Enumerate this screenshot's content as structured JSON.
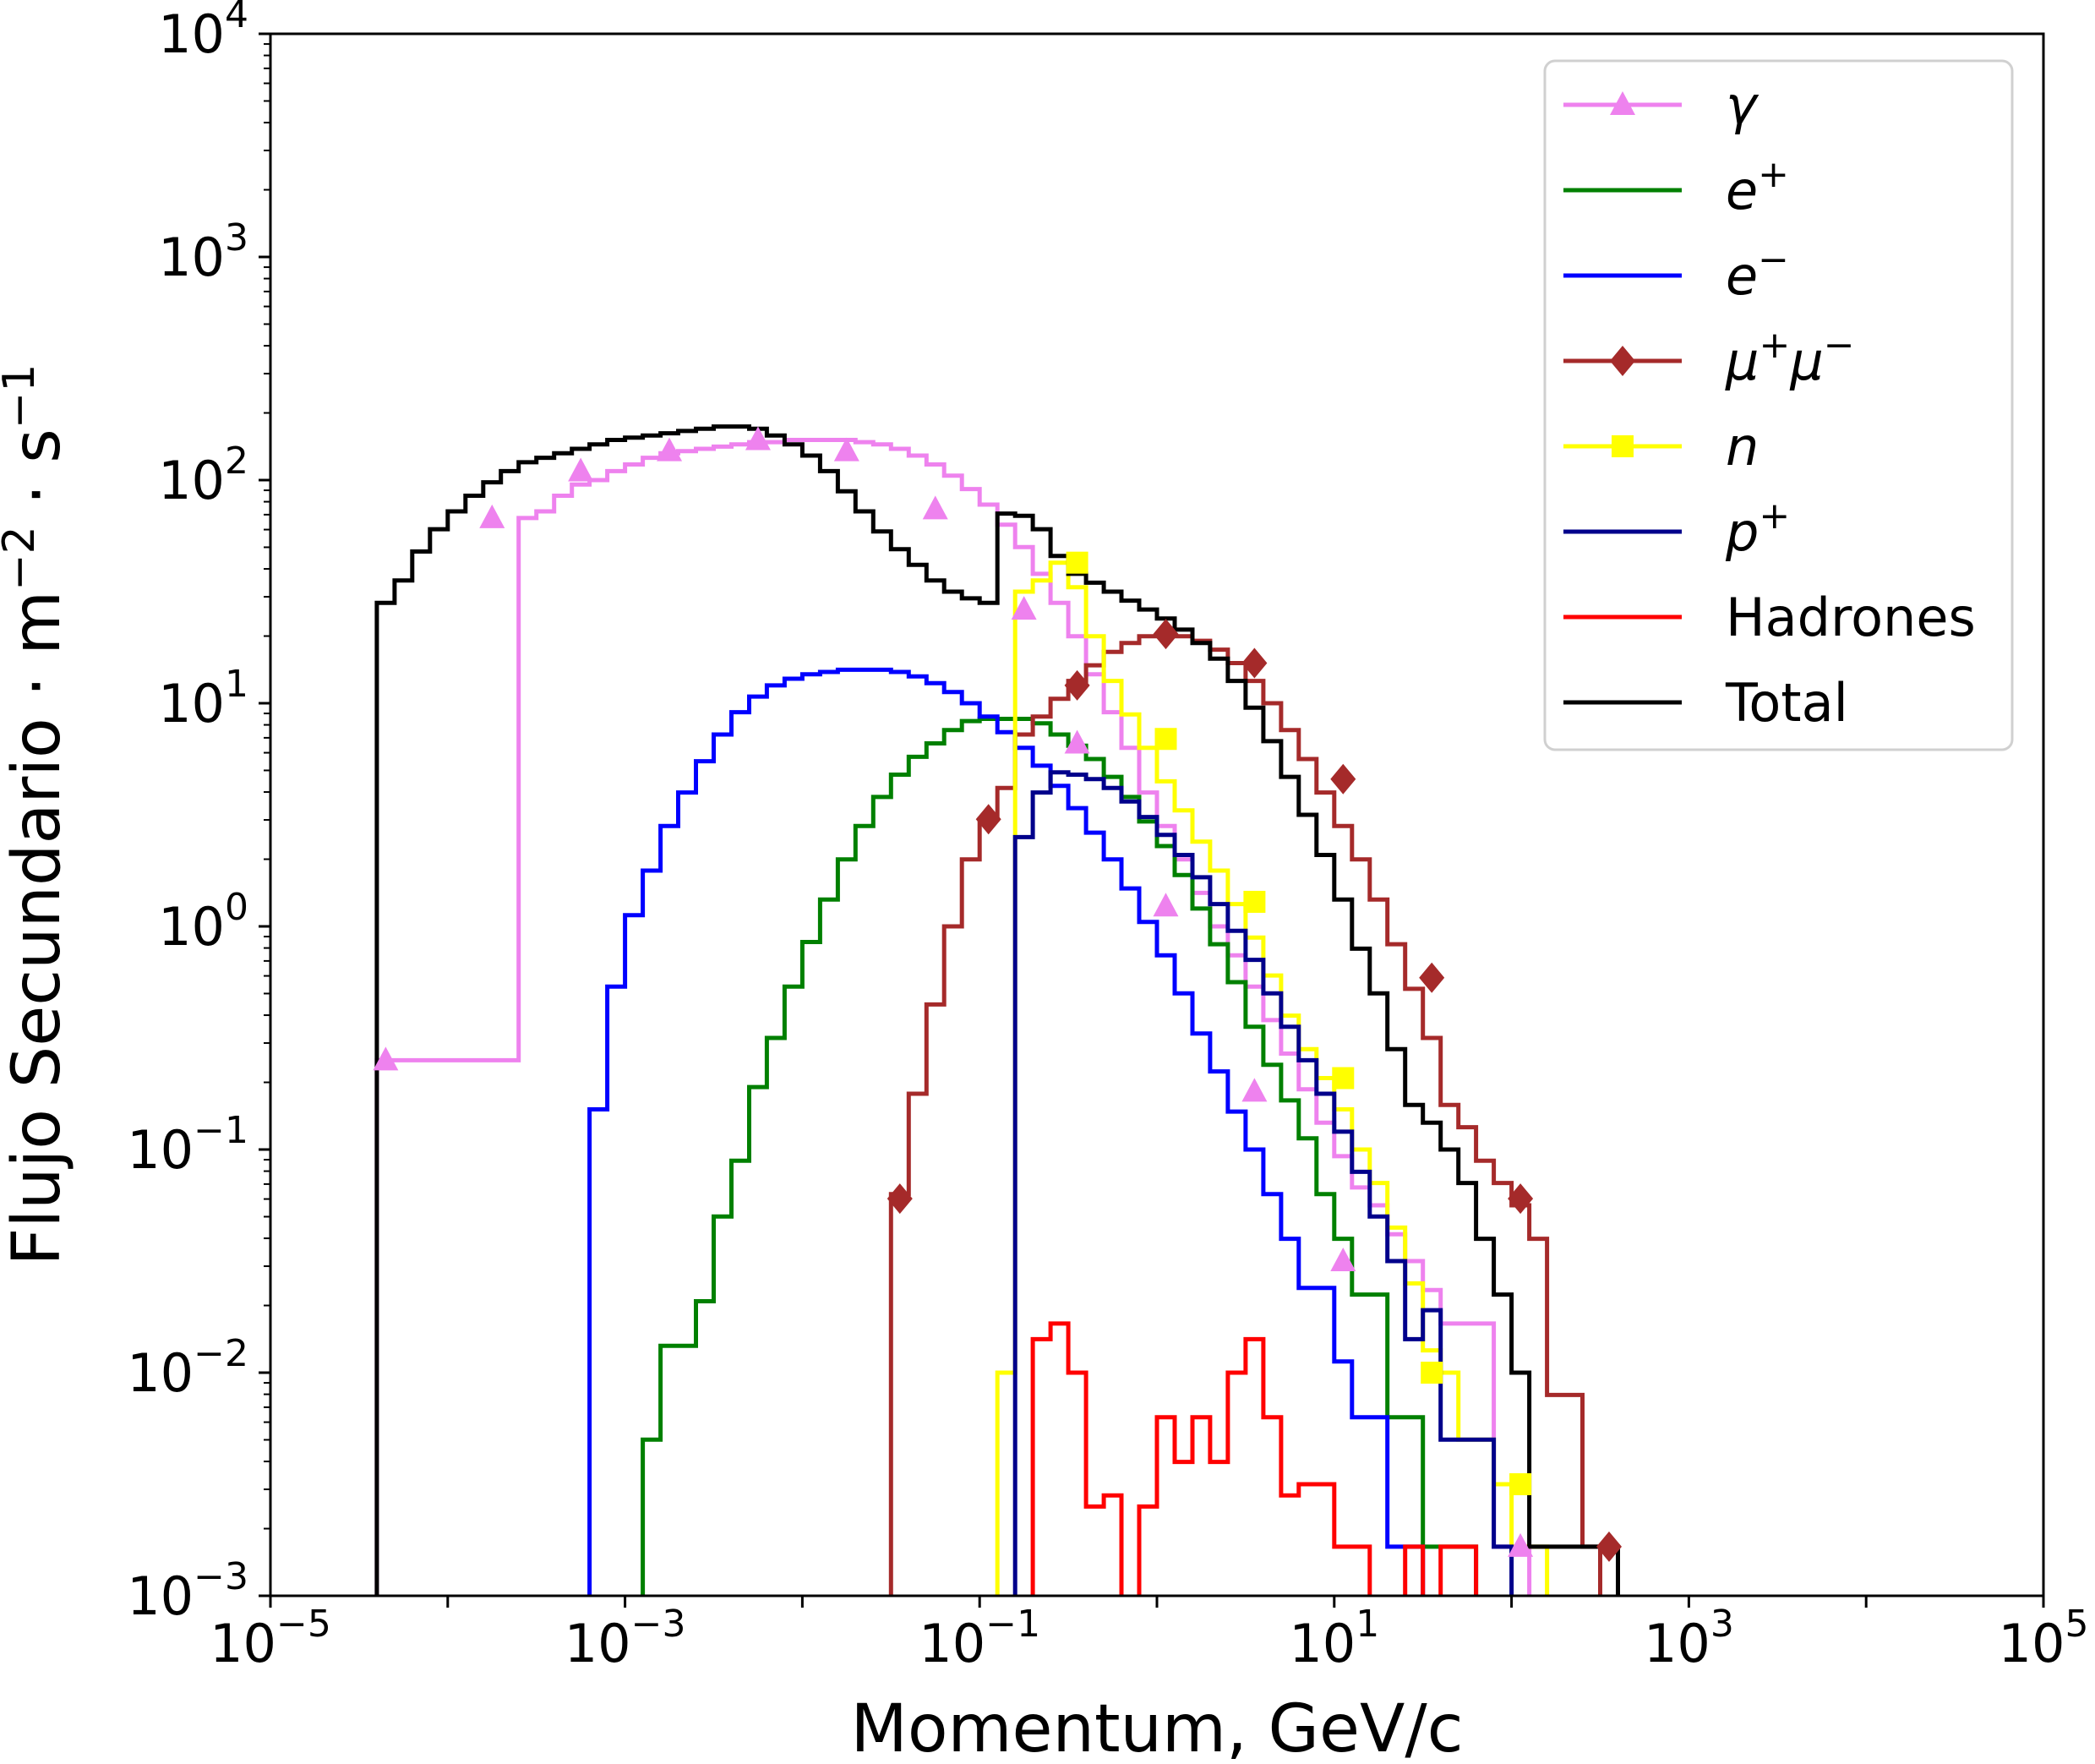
{
  "chart_data": {
    "type": "line",
    "subtype": "step-histogram",
    "title": "",
    "xlabel": "Momentum, GeV/c",
    "ylabel": "Flujo Secundario · m⁻² · s⁻¹",
    "ylabel_parts": {
      "base": "Flujo Secundario · m",
      "exp1": "−2",
      "mid": " · s",
      "exp2": "−1"
    },
    "xscale": "log",
    "yscale": "log",
    "xlim": [
      1e-05,
      100000.0
    ],
    "ylim": [
      0.001,
      10000.0
    ],
    "grid": false,
    "legend_position": "top-right",
    "x_ticks": [
      {
        "base": "10",
        "exp": "−5",
        "value": 1e-05
      },
      {
        "base": "10",
        "exp": "−3",
        "value": 0.001
      },
      {
        "base": "10",
        "exp": "−1",
        "value": 0.1
      },
      {
        "base": "10",
        "exp": "1",
        "value": 10.0
      },
      {
        "base": "10",
        "exp": "3",
        "value": 1000.0
      },
      {
        "base": "10",
        "exp": "5",
        "value": 100000.0
      }
    ],
    "y_ticks": [
      {
        "base": "10",
        "exp": "4",
        "value": 10000.0
      },
      {
        "base": "10",
        "exp": "3",
        "value": 1000.0
      },
      {
        "base": "10",
        "exp": "2",
        "value": 100.0
      },
      {
        "base": "10",
        "exp": "1",
        "value": 10.0
      },
      {
        "base": "10",
        "exp": "0",
        "value": 1.0
      },
      {
        "base": "10",
        "exp": "−1",
        "value": 0.1
      },
      {
        "base": "10",
        "exp": "−2",
        "value": 0.01
      },
      {
        "base": "10",
        "exp": "−3",
        "value": 0.001
      }
    ],
    "bin_log10_start": -4.4,
    "bin_log10_width": 0.1,
    "series": [
      {
        "name": "γ",
        "label_main": "γ",
        "label_sup": "",
        "italic": true,
        "color": "#ee82ee",
        "marker": "triangle",
        "start_bin": 0,
        "log10_values": [
          -0.6,
          -0.6,
          -0.6,
          -0.6,
          -0.6,
          -0.6,
          -0.6,
          -0.6,
          1.83,
          1.86,
          1.93,
          1.98,
          2.0,
          2.04,
          2.07,
          2.1,
          2.12,
          2.13,
          2.14,
          2.15,
          2.16,
          2.17,
          2.17,
          2.18,
          2.18,
          2.18,
          2.18,
          2.17,
          2.16,
          2.14,
          2.11,
          2.07,
          2.02,
          1.96,
          1.89,
          1.8,
          1.7,
          1.58,
          1.45,
          1.3,
          1.13,
          0.96,
          0.8,
          0.6,
          0.45,
          0.3,
          0.15,
          0.0,
          -0.13,
          -0.27,
          -0.42,
          -0.57,
          -0.73,
          -0.88,
          -1.03,
          -1.17,
          -1.25,
          -1.38,
          -1.5,
          -1.63,
          -1.78,
          -1.78,
          -1.78,
          -2.78,
          -2.78
        ],
        "marker_log10_p": [
          -4.35,
          -3.75,
          -3.25,
          -2.75,
          -2.25,
          -1.75,
          -1.25,
          -0.75,
          -0.45,
          0.05,
          0.55,
          1.05,
          2.05
        ],
        "marker_log10_flux": [
          -0.6,
          1.83,
          2.04,
          2.13,
          2.18,
          2.13,
          1.87,
          1.42,
          0.82,
          0.09,
          -0.74,
          -1.5,
          -2.78
        ]
      },
      {
        "name": "e+",
        "label_main": "e",
        "label_sup": "+",
        "italic": true,
        "color": "#008000",
        "marker": "none",
        "start_bin": 15,
        "log10_values": [
          -2.3,
          -1.88,
          -1.88,
          -1.68,
          -1.3,
          -1.05,
          -0.72,
          -0.5,
          -0.27,
          -0.07,
          0.12,
          0.3,
          0.45,
          0.58,
          0.68,
          0.76,
          0.82,
          0.88,
          0.92,
          0.93,
          0.93,
          0.93,
          0.91,
          0.86,
          0.81,
          0.75,
          0.67,
          0.58,
          0.47,
          0.36,
          0.23,
          0.08,
          -0.08,
          -0.25,
          -0.45,
          -0.62,
          -0.78,
          -0.95,
          -1.2,
          -1.4,
          -1.65,
          -1.65,
          -2.2,
          -2.2,
          -2.78,
          -2.78,
          -2.78
        ]
      },
      {
        "name": "e-",
        "label_main": "e",
        "label_sup": "−",
        "italic": true,
        "color": "#0000ff",
        "marker": "none",
        "start_bin": 12,
        "log10_values": [
          -0.82,
          -0.27,
          0.05,
          0.25,
          0.45,
          0.6,
          0.74,
          0.86,
          0.96,
          1.03,
          1.08,
          1.11,
          1.13,
          1.14,
          1.15,
          1.15,
          1.15,
          1.14,
          1.12,
          1.09,
          1.05,
          1.0,
          0.94,
          0.87,
          0.8,
          0.72,
          0.63,
          0.53,
          0.42,
          0.3,
          0.17,
          0.02,
          -0.13,
          -0.3,
          -0.48,
          -0.65,
          -0.83,
          -1.0,
          -1.2,
          -1.4,
          -1.62,
          -1.62,
          -1.95,
          -2.2,
          -2.2,
          -2.78,
          -2.78
        ]
      },
      {
        "name": "μ+μ-",
        "label_main": "μ",
        "label_sup": "+",
        "label_main2": "μ",
        "label_sup2": "−",
        "italic": true,
        "color": "#a52a2a",
        "marker": "diamond",
        "start_bin": 29,
        "log10_values": [
          -1.2,
          -0.75,
          -0.35,
          0.0,
          0.3,
          0.48,
          0.62,
          0.86,
          0.94,
          1.02,
          1.1,
          1.17,
          1.23,
          1.27,
          1.3,
          1.31,
          1.3,
          1.28,
          1.24,
          1.18,
          1.1,
          1.0,
          0.88,
          0.75,
          0.6,
          0.45,
          0.3,
          0.12,
          -0.08,
          -0.28,
          -0.5,
          -0.8,
          -0.9,
          -1.05,
          -1.15,
          -1.25,
          -1.4,
          -2.1,
          -2.1,
          -2.78
        ],
        "marker_log10_p": [
          -1.45,
          -0.95,
          -0.45,
          0.05,
          0.55,
          1.05,
          1.55,
          2.05,
          2.55
        ],
        "marker_log10_flux": [
          -1.22,
          0.48,
          1.08,
          1.31,
          1.18,
          0.66,
          -0.23,
          -1.22,
          -2.78
        ]
      },
      {
        "name": "n",
        "label_main": "n",
        "label_sup": "",
        "italic": true,
        "color": "#ffff00",
        "marker": "square",
        "start_bin": 35,
        "log10_values": [
          -2.0,
          1.5,
          1.55,
          1.63,
          1.52,
          1.3,
          1.1,
          0.95,
          0.8,
          0.65,
          0.52,
          0.38,
          0.25,
          0.1,
          -0.05,
          -0.22,
          -0.4,
          -0.55,
          -0.68,
          -0.82,
          -1.0,
          -1.15,
          -1.35,
          -1.6,
          -1.9,
          -2.0,
          -2.3,
          -2.3,
          -2.5,
          -2.78,
          -2.78
        ],
        "marker_log10_p": [
          -0.45,
          0.05,
          0.55,
          1.05,
          1.55,
          2.05
        ],
        "marker_log10_flux": [
          1.63,
          0.84,
          0.11,
          -0.68,
          -2.0,
          -2.5
        ]
      },
      {
        "name": "p+",
        "label_main": "p",
        "label_sup": "+",
        "italic": true,
        "color": "#00008b",
        "marker": "none",
        "start_bin": 36,
        "log10_values": [
          0.4,
          0.6,
          0.69,
          0.68,
          0.66,
          0.62,
          0.56,
          0.49,
          0.41,
          0.32,
          0.22,
          0.1,
          -0.02,
          -0.15,
          -0.3,
          -0.45,
          -0.6,
          -0.75,
          -0.92,
          -1.1,
          -1.3,
          -1.5,
          -1.85,
          -1.72,
          -2.3,
          -2.3,
          -2.3,
          -2.78
        ]
      },
      {
        "name": "Hadrones",
        "label_main": "Hadrones",
        "label_sup": "",
        "italic": false,
        "color": "#ff0000",
        "marker": "none",
        "start_bin": 37,
        "log10_values": [
          -1.85,
          -1.78,
          -2.0,
          -2.6,
          -2.55,
          -3.5,
          -2.6,
          -2.2,
          -2.4,
          -2.2,
          -2.4,
          -2.0,
          -1.85,
          -2.2,
          -2.55,
          -2.5,
          -2.5,
          -2.78,
          -2.78,
          -3.5,
          -3.5,
          -2.78,
          -3.5,
          -2.78,
          -2.78
        ]
      },
      {
        "name": "Total",
        "label_main": "Total",
        "label_sup": "",
        "italic": false,
        "color": "#000000",
        "marker": "none",
        "start_bin": 0,
        "log10_values": [
          1.45,
          1.55,
          1.68,
          1.78,
          1.86,
          1.93,
          1.99,
          2.04,
          2.08,
          2.1,
          2.12,
          2.14,
          2.16,
          2.18,
          2.19,
          2.2,
          2.21,
          2.22,
          2.23,
          2.24,
          2.24,
          2.23,
          2.2,
          2.16,
          2.11,
          2.04,
          1.95,
          1.86,
          1.77,
          1.69,
          1.62,
          1.55,
          1.5,
          1.47,
          1.45,
          1.85,
          1.84,
          1.78,
          1.66,
          1.58,
          1.54,
          1.5,
          1.46,
          1.42,
          1.38,
          1.33,
          1.27,
          1.2,
          1.1,
          0.98,
          0.83,
          0.67,
          0.5,
          0.32,
          0.12,
          -0.1,
          -0.3,
          -0.55,
          -0.8,
          -0.88,
          -1.0,
          -1.15,
          -1.4,
          -1.65,
          -2.0,
          -2.78,
          -2.78,
          -2.78,
          -2.78,
          -2.78
        ]
      }
    ]
  }
}
